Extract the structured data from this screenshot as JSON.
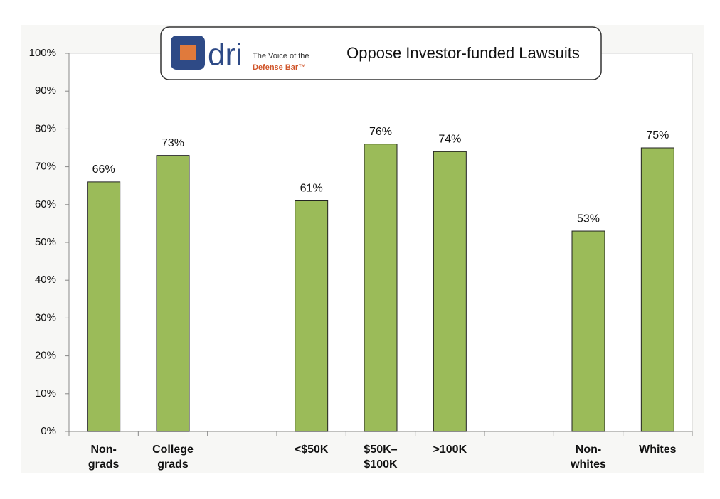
{
  "chart_data": {
    "type": "bar",
    "title": "Oppose Investor-funded Lawsuits",
    "logo": {
      "mark": "dri",
      "tagline": "The Voice of the",
      "tagline_bold": "Defense Bar™"
    },
    "categories": [
      "Non-\ngrads",
      "College\ngrads",
      null,
      "<$50K",
      "$50K–\n$100K",
      ">100K",
      null,
      "Non-\nwhites",
      "Whites"
    ],
    "values": [
      66,
      73,
      null,
      61,
      76,
      74,
      null,
      53,
      75
    ],
    "value_labels": [
      "66%",
      "73%",
      null,
      "61%",
      "76%",
      "74%",
      null,
      "53%",
      "75%"
    ],
    "color": "#9bbb59",
    "ylim": [
      0,
      100
    ],
    "yticks": [
      {
        "value": 0,
        "label": "0%"
      },
      {
        "value": 10,
        "label": "10%"
      },
      {
        "value": 20,
        "label": "20%"
      },
      {
        "value": 30,
        "label": "30%"
      },
      {
        "value": 40,
        "label": "40%"
      },
      {
        "value": 50,
        "label": "50%"
      },
      {
        "value": 60,
        "label": "60%"
      },
      {
        "value": 70,
        "label": "70%"
      },
      {
        "value": 80,
        "label": "80%"
      },
      {
        "value": 90,
        "label": "90%"
      },
      {
        "value": 100,
        "label": "100%"
      }
    ],
    "grid": false
  }
}
